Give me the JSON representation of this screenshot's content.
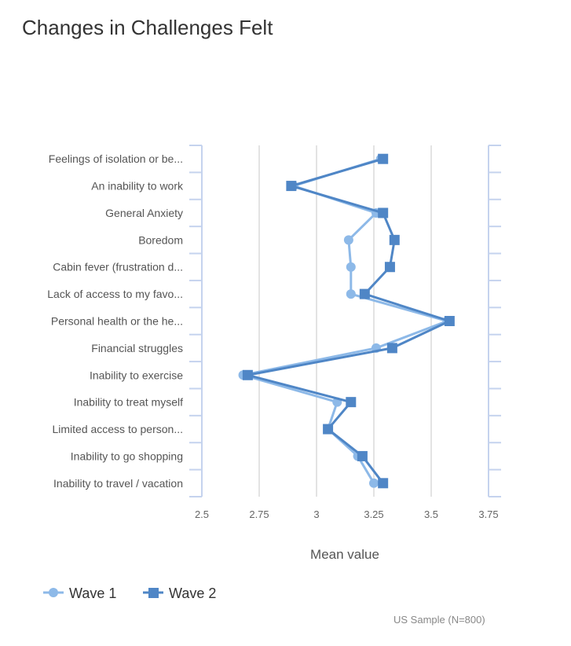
{
  "chart_data": {
    "type": "line",
    "title": "Changes in Challenges Felt",
    "xlabel": "Mean value",
    "ylabel": "",
    "xlim": [
      2.5,
      3.75
    ],
    "x_ticks": [
      "2.5",
      "2.75",
      "3",
      "3.25",
      "3.5",
      "3.75"
    ],
    "grid": "vertical",
    "orientation": "horizontal",
    "legend_position": "bottom-left",
    "categories": [
      "Feelings of isolation or be...",
      "An inability to work",
      "General Anxiety",
      "Boredom",
      "Cabin fever (frustration d...",
      "Lack of access to my favo...",
      "Personal health or the he...",
      "Financial struggles",
      "Inability to exercise",
      "Inability to treat myself",
      "Limited access to person...",
      "Inability to go shopping",
      "Inability to travel / vacation"
    ],
    "series": [
      {
        "name": "Wave 1",
        "marker": "circle",
        "color": "#8db9e8",
        "values": [
          3.28,
          2.9,
          3.26,
          3.14,
          3.15,
          3.15,
          3.57,
          3.26,
          2.68,
          3.09,
          3.05,
          3.18,
          3.25
        ]
      },
      {
        "name": "Wave 2",
        "marker": "square",
        "color": "#4f86c6",
        "values": [
          3.29,
          2.89,
          3.29,
          3.34,
          3.32,
          3.21,
          3.58,
          3.33,
          2.7,
          3.15,
          3.05,
          3.2,
          3.29
        ]
      }
    ]
  },
  "footnote": "US Sample (N=800)"
}
